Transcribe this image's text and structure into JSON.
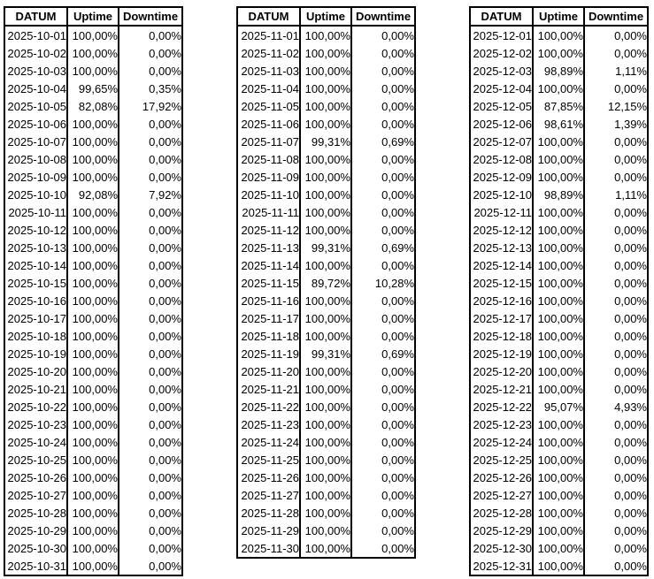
{
  "report": {
    "column_headers": [
      "DATUM",
      "Uptime",
      "Downtime"
    ],
    "text_color": "#000000",
    "border_color": "#000000",
    "background_color": "#ffffff",
    "tables": [
      {
        "headers": [
          "DATUM",
          "Uptime",
          "Downtime"
        ],
        "rows": [
          [
            "2025-10-01",
            "100,00%",
            "0,00%"
          ],
          [
            "2025-10-02",
            "100,00%",
            "0,00%"
          ],
          [
            "2025-10-03",
            "100,00%",
            "0,00%"
          ],
          [
            "2025-10-04",
            "99,65%",
            "0,35%"
          ],
          [
            "2025-10-05",
            "82,08%",
            "17,92%"
          ],
          [
            "2025-10-06",
            "100,00%",
            "0,00%"
          ],
          [
            "2025-10-07",
            "100,00%",
            "0,00%"
          ],
          [
            "2025-10-08",
            "100,00%",
            "0,00%"
          ],
          [
            "2025-10-09",
            "100,00%",
            "0,00%"
          ],
          [
            "2025-10-10",
            "92,08%",
            "7,92%"
          ],
          [
            "2025-10-11",
            "100,00%",
            "0,00%"
          ],
          [
            "2025-10-12",
            "100,00%",
            "0,00%"
          ],
          [
            "2025-10-13",
            "100,00%",
            "0,00%"
          ],
          [
            "2025-10-14",
            "100,00%",
            "0,00%"
          ],
          [
            "2025-10-15",
            "100,00%",
            "0,00%"
          ],
          [
            "2025-10-16",
            "100,00%",
            "0,00%"
          ],
          [
            "2025-10-17",
            "100,00%",
            "0,00%"
          ],
          [
            "2025-10-18",
            "100,00%",
            "0,00%"
          ],
          [
            "2025-10-19",
            "100,00%",
            "0,00%"
          ],
          [
            "2025-10-20",
            "100,00%",
            "0,00%"
          ],
          [
            "2025-10-21",
            "100,00%",
            "0,00%"
          ],
          [
            "2025-10-22",
            "100,00%",
            "0,00%"
          ],
          [
            "2025-10-23",
            "100,00%",
            "0,00%"
          ],
          [
            "2025-10-24",
            "100,00%",
            "0,00%"
          ],
          [
            "2025-10-25",
            "100,00%",
            "0,00%"
          ],
          [
            "2025-10-26",
            "100,00%",
            "0,00%"
          ],
          [
            "2025-10-27",
            "100,00%",
            "0,00%"
          ],
          [
            "2025-10-28",
            "100,00%",
            "0,00%"
          ],
          [
            "2025-10-29",
            "100,00%",
            "0,00%"
          ],
          [
            "2025-10-30",
            "100,00%",
            "0,00%"
          ],
          [
            "2025-10-31",
            "100,00%",
            "0,00%"
          ]
        ]
      },
      {
        "headers": [
          "DATUM",
          "Uptime",
          "Downtime"
        ],
        "rows": [
          [
            "2025-11-01",
            "100,00%",
            "0,00%"
          ],
          [
            "2025-11-02",
            "100,00%",
            "0,00%"
          ],
          [
            "2025-11-03",
            "100,00%",
            "0,00%"
          ],
          [
            "2025-11-04",
            "100,00%",
            "0,00%"
          ],
          [
            "2025-11-05",
            "100,00%",
            "0,00%"
          ],
          [
            "2025-11-06",
            "100,00%",
            "0,00%"
          ],
          [
            "2025-11-07",
            "99,31%",
            "0,69%"
          ],
          [
            "2025-11-08",
            "100,00%",
            "0,00%"
          ],
          [
            "2025-11-09",
            "100,00%",
            "0,00%"
          ],
          [
            "2025-11-10",
            "100,00%",
            "0,00%"
          ],
          [
            "2025-11-11",
            "100,00%",
            "0,00%"
          ],
          [
            "2025-11-12",
            "100,00%",
            "0,00%"
          ],
          [
            "2025-11-13",
            "99,31%",
            "0,69%"
          ],
          [
            "2025-11-14",
            "100,00%",
            "0,00%"
          ],
          [
            "2025-11-15",
            "89,72%",
            "10,28%"
          ],
          [
            "2025-11-16",
            "100,00%",
            "0,00%"
          ],
          [
            "2025-11-17",
            "100,00%",
            "0,00%"
          ],
          [
            "2025-11-18",
            "100,00%",
            "0,00%"
          ],
          [
            "2025-11-19",
            "99,31%",
            "0,69%"
          ],
          [
            "2025-11-20",
            "100,00%",
            "0,00%"
          ],
          [
            "2025-11-21",
            "100,00%",
            "0,00%"
          ],
          [
            "2025-11-22",
            "100,00%",
            "0,00%"
          ],
          [
            "2025-11-23",
            "100,00%",
            "0,00%"
          ],
          [
            "2025-11-24",
            "100,00%",
            "0,00%"
          ],
          [
            "2025-11-25",
            "100,00%",
            "0,00%"
          ],
          [
            "2025-11-26",
            "100,00%",
            "0,00%"
          ],
          [
            "2025-11-27",
            "100,00%",
            "0,00%"
          ],
          [
            "2025-11-28",
            "100,00%",
            "0,00%"
          ],
          [
            "2025-11-29",
            "100,00%",
            "0,00%"
          ],
          [
            "2025-11-30",
            "100,00%",
            "0,00%"
          ]
        ]
      },
      {
        "headers": [
          "DATUM",
          "Uptime",
          "Downtime"
        ],
        "rows": [
          [
            "2025-12-01",
            "100,00%",
            "0,00%"
          ],
          [
            "2025-12-02",
            "100,00%",
            "0,00%"
          ],
          [
            "2025-12-03",
            "98,89%",
            "1,11%"
          ],
          [
            "2025-12-04",
            "100,00%",
            "0,00%"
          ],
          [
            "2025-12-05",
            "87,85%",
            "12,15%"
          ],
          [
            "2025-12-06",
            "98,61%",
            "1,39%"
          ],
          [
            "2025-12-07",
            "100,00%",
            "0,00%"
          ],
          [
            "2025-12-08",
            "100,00%",
            "0,00%"
          ],
          [
            "2025-12-09",
            "100,00%",
            "0,00%"
          ],
          [
            "2025-12-10",
            "98,89%",
            "1,11%"
          ],
          [
            "2025-12-11",
            "100,00%",
            "0,00%"
          ],
          [
            "2025-12-12",
            "100,00%",
            "0,00%"
          ],
          [
            "2025-12-13",
            "100,00%",
            "0,00%"
          ],
          [
            "2025-12-14",
            "100,00%",
            "0,00%"
          ],
          [
            "2025-12-15",
            "100,00%",
            "0,00%"
          ],
          [
            "2025-12-16",
            "100,00%",
            "0,00%"
          ],
          [
            "2025-12-17",
            "100,00%",
            "0,00%"
          ],
          [
            "2025-12-18",
            "100,00%",
            "0,00%"
          ],
          [
            "2025-12-19",
            "100,00%",
            "0,00%"
          ],
          [
            "2025-12-20",
            "100,00%",
            "0,00%"
          ],
          [
            "2025-12-21",
            "100,00%",
            "0,00%"
          ],
          [
            "2025-12-22",
            "95,07%",
            "4,93%"
          ],
          [
            "2025-12-23",
            "100,00%",
            "0,00%"
          ],
          [
            "2025-12-24",
            "100,00%",
            "0,00%"
          ],
          [
            "2025-12-25",
            "100,00%",
            "0,00%"
          ],
          [
            "2025-12-26",
            "100,00%",
            "0,00%"
          ],
          [
            "2025-12-27",
            "100,00%",
            "0,00%"
          ],
          [
            "2025-12-28",
            "100,00%",
            "0,00%"
          ],
          [
            "2025-12-29",
            "100,00%",
            "0,00%"
          ],
          [
            "2025-12-30",
            "100,00%",
            "0,00%"
          ],
          [
            "2025-12-31",
            "100,00%",
            "0,00%"
          ]
        ]
      }
    ]
  }
}
